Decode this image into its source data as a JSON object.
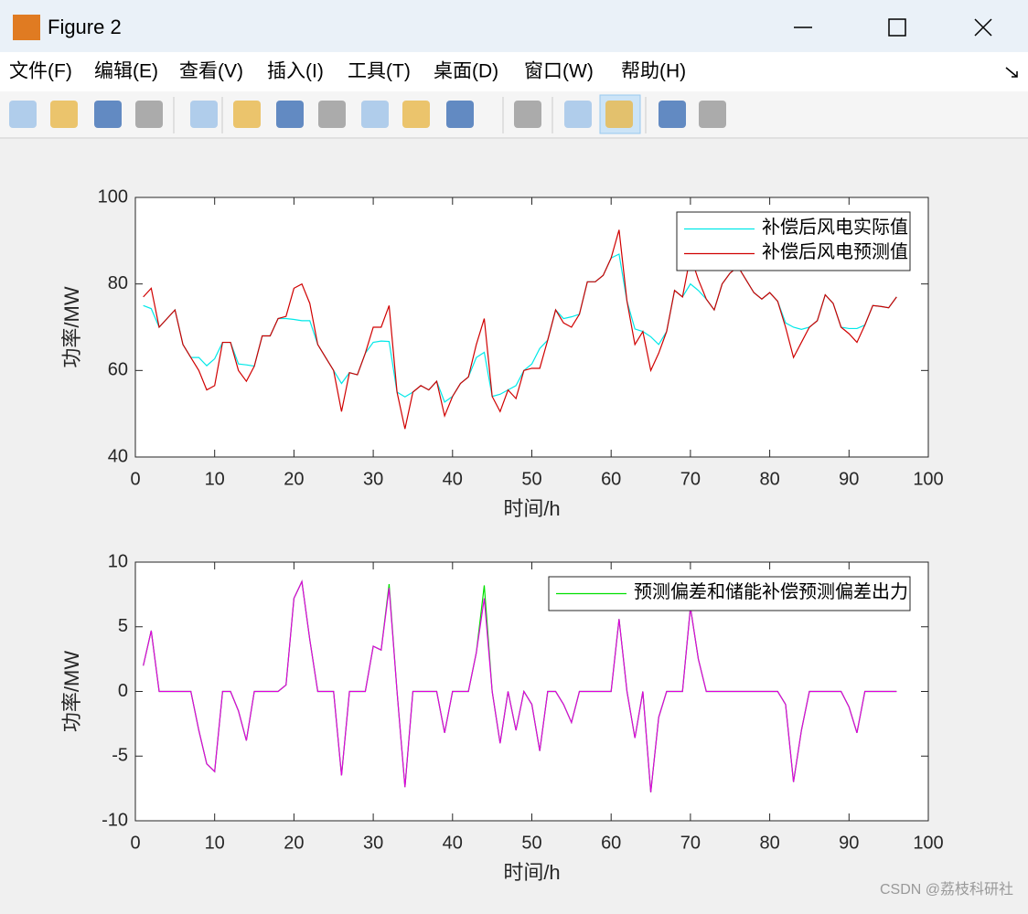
{
  "window": {
    "title": "Figure 2",
    "menus": [
      "文件(F)",
      "编辑(E)",
      "查看(V)",
      "插入(I)",
      "工具(T)",
      "桌面(D)",
      "窗口(W)",
      "帮助(H)"
    ],
    "watermark": "CSDN @荔枝科研社"
  },
  "chart_data": [
    {
      "type": "line",
      "xlabel": "时间/h",
      "ylabel": "功率/MW",
      "x": [
        1,
        2,
        3,
        4,
        5,
        6,
        7,
        8,
        9,
        10,
        11,
        12,
        13,
        14,
        15,
        16,
        17,
        18,
        19,
        20,
        21,
        22,
        23,
        24,
        25,
        26,
        27,
        28,
        29,
        30,
        31,
        32,
        33,
        34,
        35,
        36,
        37,
        38,
        39,
        40,
        41,
        42,
        43,
        44,
        45,
        46,
        47,
        48,
        49,
        50,
        51,
        52,
        53,
        54,
        55,
        56,
        57,
        58,
        59,
        60,
        61,
        62,
        63,
        64,
        65,
        66,
        67,
        68,
        69,
        70,
        71,
        72,
        73,
        74,
        75,
        76,
        77,
        78,
        79,
        80,
        81,
        82,
        83,
        84,
        85,
        86,
        87,
        88,
        89,
        90,
        91,
        92,
        93,
        94,
        95,
        96
      ],
      "series": [
        {
          "name": "补偿后风电实际值",
          "color": "#00e8e8",
          "values": [
            75,
            74.3,
            70,
            72,
            74,
            66,
            63,
            63,
            61.1,
            62.7,
            66.5,
            66.5,
            61.5,
            61.3,
            61,
            68,
            68,
            72,
            72,
            71.8,
            71.5,
            71.5,
            66,
            63,
            60,
            57,
            59.5,
            59,
            64,
            66.5,
            66.8,
            66.7,
            55,
            53.9,
            55,
            56.5,
            55.5,
            57.5,
            52.7,
            54,
            57,
            58.5,
            63,
            64.2,
            54,
            54.5,
            55.5,
            56.5,
            60,
            61.5,
            65.1,
            67,
            74,
            72,
            72.4,
            73,
            80.5,
            80.5,
            82,
            86,
            86.9,
            76,
            69.6,
            69,
            67.8,
            66,
            69,
            78.5,
            77,
            80,
            78.5,
            76.5,
            74,
            80,
            82.5,
            84,
            81,
            78,
            76.5,
            78,
            76,
            71,
            70,
            69.5,
            70,
            71.5,
            77.5,
            75.5,
            70,
            69.7,
            69.7,
            70.5,
            75,
            74.8,
            74.5,
            77
          ]
        },
        {
          "name": "补偿后风电预测值",
          "color": "#d00000",
          "values": [
            77,
            79,
            70,
            72,
            74,
            66,
            63,
            60,
            55.5,
            56.5,
            66.5,
            66.5,
            60,
            57.5,
            61,
            68,
            68,
            72,
            72.5,
            79,
            80,
            75.5,
            66,
            63,
            60,
            50.5,
            59.5,
            59,
            64,
            70,
            70,
            75,
            55,
            46.5,
            55,
            56.5,
            55.5,
            57.5,
            49.5,
            54,
            57,
            58.5,
            66,
            72,
            54,
            50.5,
            55.5,
            53.5,
            60,
            60.5,
            60.5,
            67,
            74,
            71,
            70,
            73,
            80.5,
            80.5,
            82,
            86,
            92.5,
            76,
            66,
            69,
            60,
            64,
            69,
            78.5,
            77,
            86.5,
            81,
            76.5,
            74,
            80,
            82.5,
            84,
            81,
            78,
            76.5,
            78,
            76,
            70,
            63,
            66.5,
            70,
            71.5,
            77.5,
            75.5,
            70,
            68.5,
            66.5,
            70.5,
            75,
            74.8,
            74.5,
            77
          ]
        }
      ],
      "xlim": [
        0,
        100
      ],
      "ylim": [
        40,
        100
      ],
      "xticks": [
        0,
        10,
        20,
        30,
        40,
        50,
        60,
        70,
        80,
        90,
        100
      ],
      "yticks": [
        40,
        60,
        80,
        100
      ],
      "legend": "upper right"
    },
    {
      "type": "line",
      "xlabel": "时间/h",
      "ylabel": "功率/MW",
      "x": [
        1,
        2,
        3,
        4,
        5,
        6,
        7,
        8,
        9,
        10,
        11,
        12,
        13,
        14,
        15,
        16,
        17,
        18,
        19,
        20,
        21,
        22,
        23,
        24,
        25,
        26,
        27,
        28,
        29,
        30,
        31,
        32,
        33,
        34,
        35,
        36,
        37,
        38,
        39,
        40,
        41,
        42,
        43,
        44,
        45,
        46,
        47,
        48,
        49,
        50,
        51,
        52,
        53,
        54,
        55,
        56,
        57,
        58,
        59,
        60,
        61,
        62,
        63,
        64,
        65,
        66,
        67,
        68,
        69,
        70,
        71,
        72,
        73,
        74,
        75,
        76,
        77,
        78,
        79,
        80,
        81,
        82,
        83,
        84,
        85,
        86,
        87,
        88,
        89,
        90,
        91,
        92,
        93,
        94,
        95,
        96
      ],
      "series": [
        {
          "name": "预测偏差和储能补偿预测偏差出力",
          "color": "#00e000",
          "values": [
            2,
            4.7,
            0,
            0,
            0,
            0,
            0,
            -3,
            -5.6,
            -6.2,
            0,
            0,
            -1.5,
            -3.8,
            0,
            0,
            0,
            0,
            0.5,
            7.2,
            8.5,
            4,
            0,
            0,
            0,
            -6.5,
            0,
            0,
            0,
            3.5,
            3.2,
            8.3,
            0,
            -7.4,
            0,
            0,
            0,
            0,
            -3.2,
            0,
            0,
            0,
            3,
            8.2,
            0,
            -4,
            0,
            -3,
            0,
            -1,
            -4.6,
            0,
            0,
            -1,
            -2.4,
            0,
            0,
            0,
            0,
            0,
            5.6,
            0,
            -3.6,
            0,
            -7.8,
            -2,
            0,
            0,
            0,
            6.5,
            2.5,
            0,
            0,
            0,
            0,
            0,
            0,
            0,
            0,
            0,
            0,
            -1,
            -7,
            -3,
            0,
            0,
            0,
            0,
            0,
            -1.2,
            -3.2,
            0,
            0,
            0,
            0,
            0
          ]
        },
        {
          "color": "#e000e0",
          "values": [
            2,
            4.7,
            0,
            0,
            0,
            0,
            0,
            -3,
            -5.6,
            -6.2,
            0,
            0,
            -1.5,
            -3.8,
            0,
            0,
            0,
            0,
            0.5,
            7.2,
            8.5,
            4,
            0,
            0,
            0,
            -6.5,
            0,
            0,
            0,
            3.5,
            3.2,
            8,
            0,
            -7.4,
            0,
            0,
            0,
            0,
            -3.2,
            0,
            0,
            0,
            3,
            7.2,
            0,
            -4,
            0,
            -3,
            0,
            -1,
            -4.6,
            0,
            0,
            -1,
            -2.4,
            0,
            0,
            0,
            0,
            0,
            5.6,
            0,
            -3.6,
            0,
            -7.8,
            -2,
            0,
            0,
            0,
            6.5,
            2.5,
            0,
            0,
            0,
            0,
            0,
            0,
            0,
            0,
            0,
            0,
            -1,
            -7,
            -3,
            0,
            0,
            0,
            0,
            0,
            -1.2,
            -3.2,
            0,
            0,
            0,
            0,
            0
          ]
        }
      ],
      "xlim": [
        0,
        100
      ],
      "ylim": [
        -10,
        10
      ],
      "xticks": [
        0,
        10,
        20,
        30,
        40,
        50,
        60,
        70,
        80,
        90,
        100
      ],
      "yticks": [
        -10,
        -5,
        0,
        5,
        10
      ],
      "legend": "upper right"
    }
  ]
}
